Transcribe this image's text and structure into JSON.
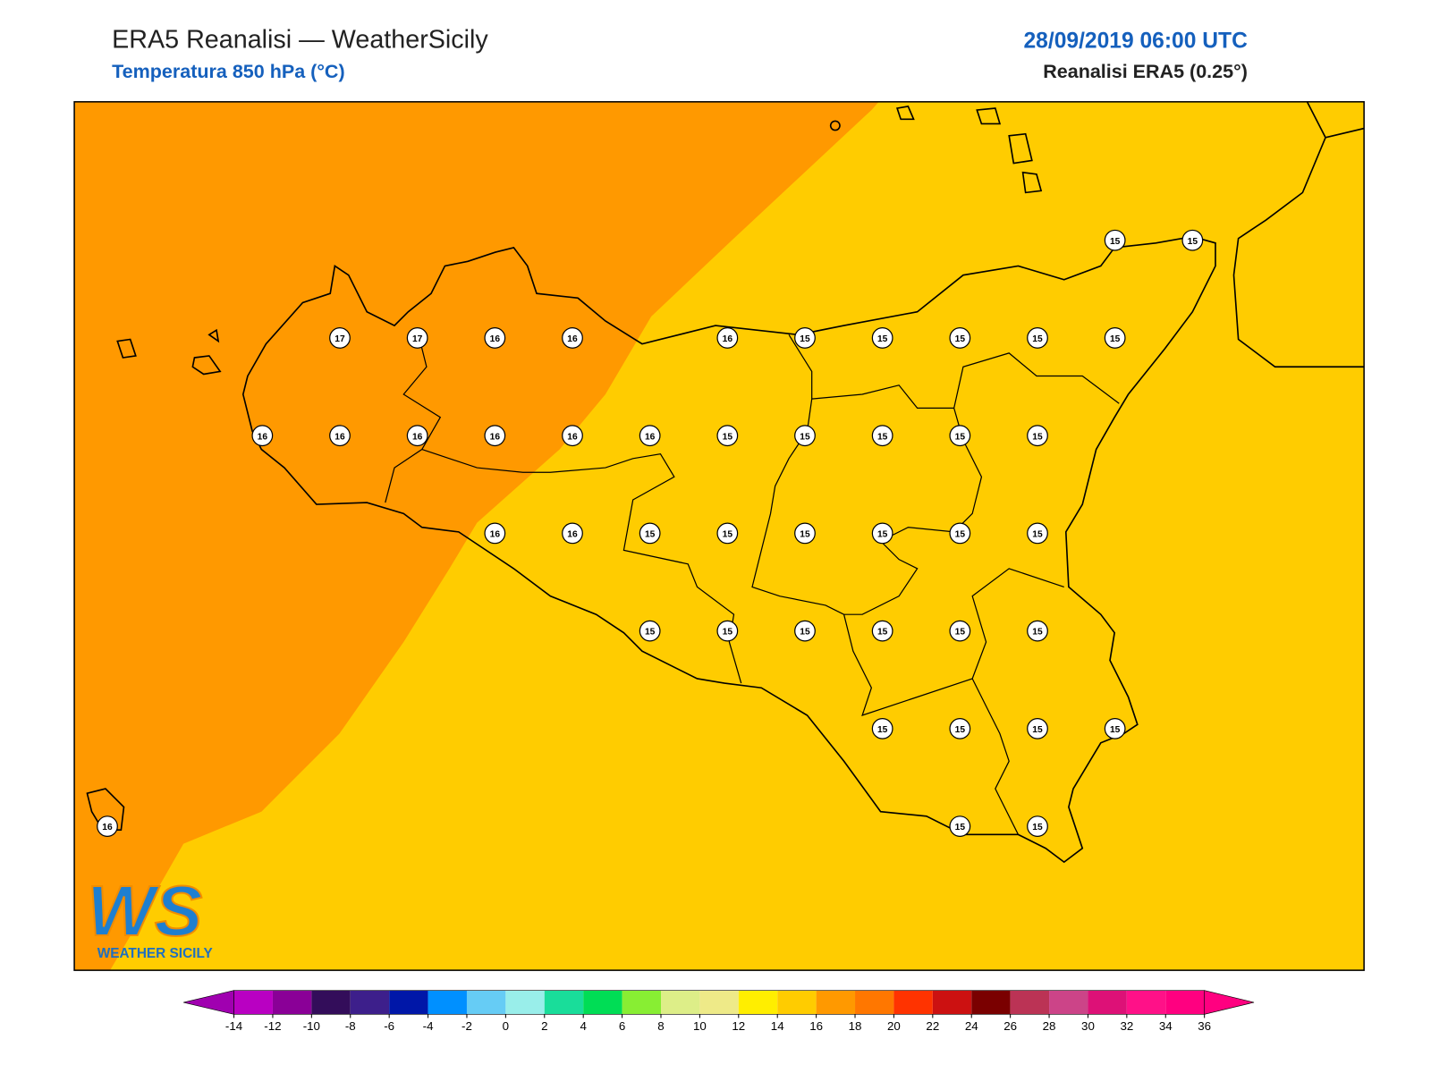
{
  "header": {
    "title": "ERA5 Reanalisi — WeatherSicily",
    "subtitle": "Temperatura 850 hPa (°C)",
    "date": "28/09/2019 06:00 UTC",
    "source": "Reanalisi ERA5 (0.25°)"
  },
  "map": {
    "points": [
      15,
      15,
      17,
      17,
      16,
      16,
      16,
      15,
      15,
      15,
      15,
      15,
      16,
      16,
      16,
      16,
      16,
      16,
      15,
      15,
      15,
      15,
      15,
      16,
      16,
      15,
      15,
      15,
      15,
      15,
      15,
      15,
      15,
      15,
      15,
      15,
      15,
      15,
      15,
      15,
      15,
      16,
      15,
      15
    ]
  },
  "colorbar": {
    "ticks": [
      -14,
      -12,
      -10,
      -8,
      -6,
      -4,
      -2,
      0,
      2,
      4,
      6,
      8,
      10,
      12,
      14,
      16,
      18,
      20,
      22,
      24,
      26,
      28,
      30,
      32,
      34,
      36
    ],
    "colors": [
      "#b900c2",
      "#8a0097",
      "#330d5a",
      "#3d1f8b",
      "#0017a8",
      "#0090ff",
      "#66ccf5",
      "#99eeea",
      "#19dd9a",
      "#00dd55",
      "#88ee33",
      "#ddee88",
      "#eeea88",
      "#ffee00",
      "#ffcc00",
      "#ff9900",
      "#ff7700",
      "#ff3300",
      "#cc1111",
      "#7a0000",
      "#bb3355",
      "#cc4488",
      "#dd1177",
      "#ff1188",
      "#ff0080"
    ],
    "extend_colors": [
      "#a000b0",
      "#ff0080"
    ]
  },
  "logo": {
    "mark": "WS",
    "text": "WEATHER SICILY"
  }
}
